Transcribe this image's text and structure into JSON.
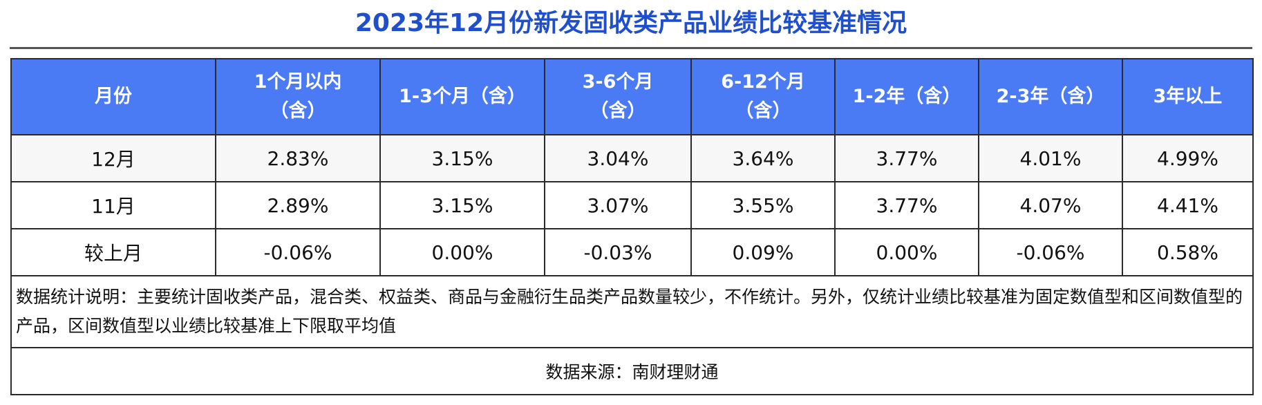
{
  "title": "2023年12月份新发固收类产品业绩比较基准情况",
  "table": {
    "headers": [
      [
        "月份"
      ],
      [
        "1个月以内",
        "（含）"
      ],
      [
        "1-3个月（含）"
      ],
      [
        "3-6个月",
        "（含）"
      ],
      [
        "6-12个月",
        "（含）"
      ],
      [
        "1-2年（含）"
      ],
      [
        "2-3年（含）"
      ],
      [
        "3年以上"
      ]
    ],
    "rows": [
      [
        "12月",
        "2.83%",
        "3.15%",
        "3.04%",
        "3.64%",
        "3.77%",
        "4.01%",
        "4.99%"
      ],
      [
        "11月",
        "2.89%",
        "3.15%",
        "3.07%",
        "3.55%",
        "3.77%",
        "4.07%",
        "4.41%"
      ],
      [
        "较上月",
        "-0.06%",
        "0.00%",
        "-0.03%",
        "0.09%",
        "0.00%",
        "-0.06%",
        "0.58%"
      ]
    ],
    "note": "数据统计说明：主要统计固收类产品，混合类、权益类、商品与金融衍生品类产品数量较少，不作统计。另外，仅统计业绩比较基准为固定数值型和区间数值型的产品，区间数值型以业绩比较基准上下限取平均值",
    "source": "数据来源：南财理财通"
  },
  "colors": {
    "title": "#1f4fcc",
    "header_bg": "#4a7af4",
    "header_text": "#ffffff",
    "border": "#2a2a2a"
  }
}
